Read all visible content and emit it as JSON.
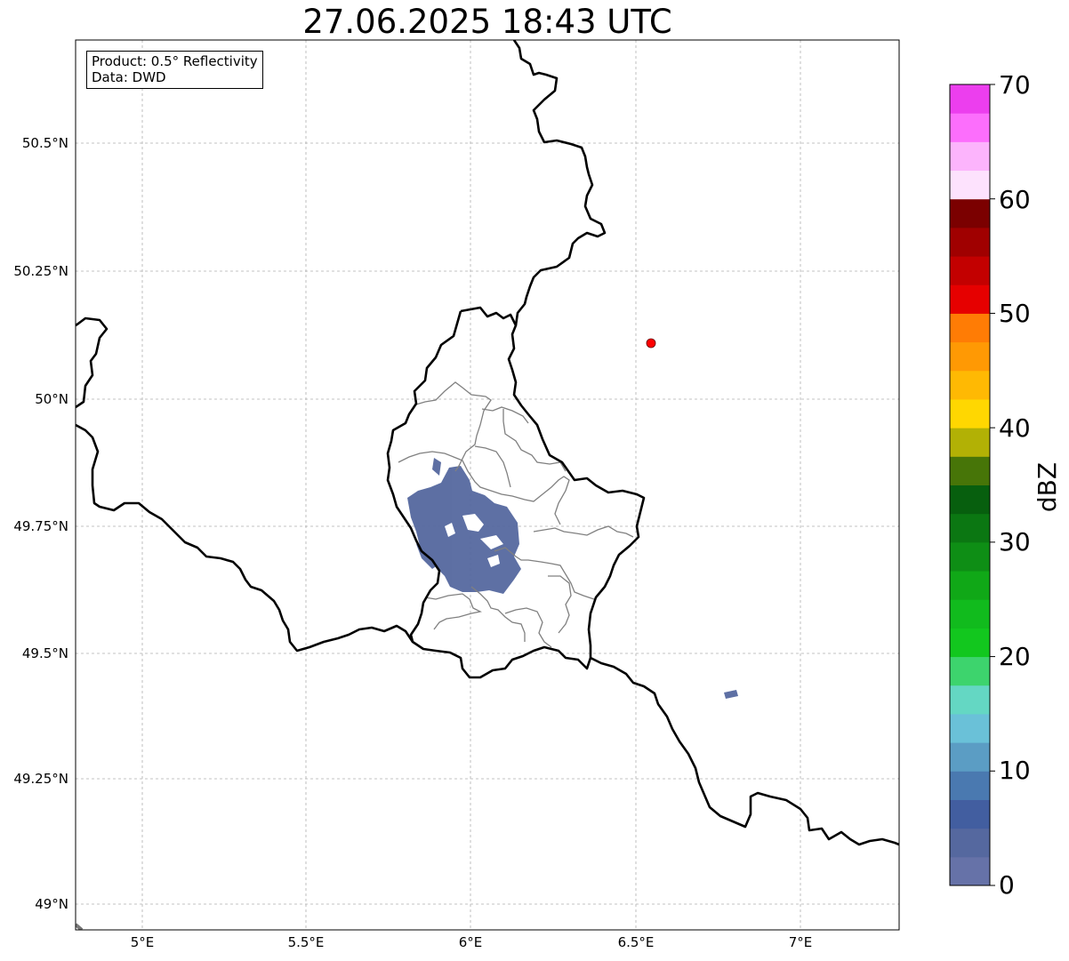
{
  "title": "27.06.2025 18:43 UTC",
  "info_box": {
    "product": "Product: 0.5° Reflectivity",
    "data_source": "Data: DWD"
  },
  "axes": {
    "lat_ticks": [
      "50.5°N",
      "50.25°N",
      "50°N",
      "49.75°N",
      "49.5°N",
      "49.25°N",
      "49°N"
    ],
    "lon_ticks": [
      "5°E",
      "5.5°E",
      "6°E",
      "6.5°E",
      "7°E"
    ]
  },
  "colorbar": {
    "label": "dBZ",
    "tick_labels": [
      "0",
      "10",
      "20",
      "30",
      "40",
      "50",
      "60",
      "70"
    ],
    "colors": [
      "#6672a8",
      "#55689f",
      "#425ea0",
      "#4a79b0",
      "#5b9dc4",
      "#6ac1d8",
      "#64d7c3",
      "#3dd46d",
      "#12c71e",
      "#11bb1d",
      "#10a817",
      "#0e8e15",
      "#0b7712",
      "#075f0e",
      "#477508",
      "#b2b105",
      "#ffd701",
      "#ffb903",
      "#ff9904",
      "#ff7c05",
      "#e60000",
      "#c30000",
      "#a00000",
      "#7b0000",
      "#fde2fd",
      "#fcb4fc",
      "#fc6efc",
      "#ec3eee"
    ]
  },
  "legend_colors": {
    "country_border": "#000000",
    "district_border": "#808080",
    "radar_echo": "#55689f",
    "radar_site_marker": "#ff0000"
  }
}
